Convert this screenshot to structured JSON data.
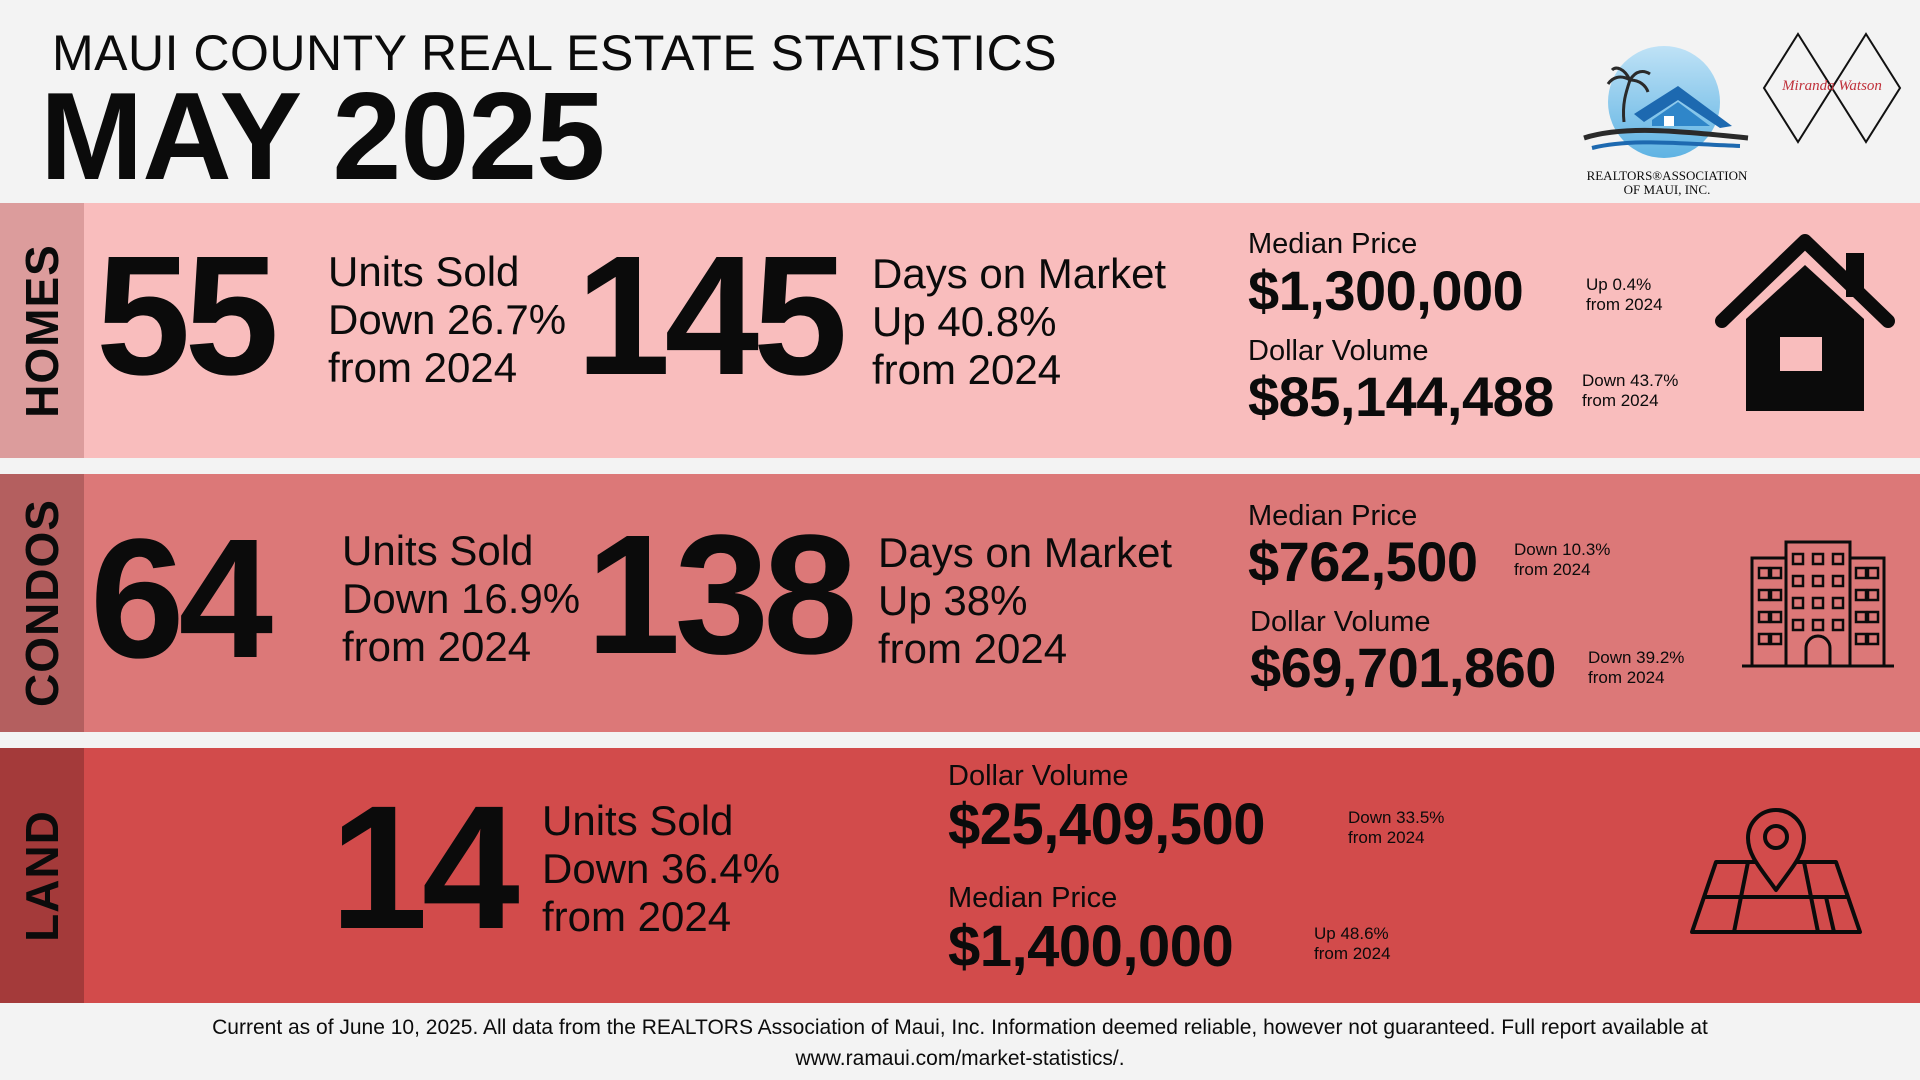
{
  "header": {
    "title": "MAUI COUNTY REAL ESTATE STATISTICS",
    "month": "MAY 2025"
  },
  "logos": {
    "association_line1": "REALTORS®ASSOCIATION",
    "association_line2": "OF MAUI, INC.",
    "agent_signature": "Miranda Watson"
  },
  "homes": {
    "label": "HOMES",
    "units": "55",
    "units_label": "Units Sold",
    "units_change": "Down 26.7%",
    "units_from": "from 2024",
    "days": "145",
    "days_label": "Days on Market",
    "days_change": "Up 40.8%",
    "days_from": "from 2024",
    "median_label": "Median Price",
    "median_value": "$1,300,000",
    "median_change": "Up 0.4%",
    "median_from": "from 2024",
    "volume_label": "Dollar Volume",
    "volume_value": "$85,144,488",
    "volume_change": "Down 43.7%",
    "volume_from": "from 2024",
    "icon": "house-icon"
  },
  "condos": {
    "label": "CONDOS",
    "units": "64",
    "units_label": "Units Sold",
    "units_change": "Down 16.9%",
    "units_from": "from 2024",
    "days": "138",
    "days_label": "Days on Market",
    "days_change": "Up 38%",
    "days_from": "from 2024",
    "median_label": "Median Price",
    "median_value": "$762,500",
    "median_change": "Down 10.3%",
    "median_from": "from 2024",
    "volume_label": "Dollar Volume",
    "volume_value": "$69,701,860",
    "volume_change": "Down 39.2%",
    "volume_from": "from 2024",
    "icon": "building-icon"
  },
  "land": {
    "label": "LAND",
    "units": "14",
    "units_label": "Units Sold",
    "units_change": "Down 36.4%",
    "units_from": "from 2024",
    "volume_label": "Dollar Volume",
    "volume_value": "$25,409,500",
    "volume_change": "Down 33.5%",
    "volume_from": "from 2024",
    "median_label": "Median Price",
    "median_value": "$1,400,000",
    "median_change": "Up 48.6%",
    "median_from": "from 2024",
    "icon": "map-pin-icon"
  },
  "footer": {
    "line1": "Current as of June 10, 2025. All data from the REALTORS Association of Maui, Inc. Information deemed reliable, however not guaranteed. Full report available at",
    "line2": "www.ramaui.com/market-statistics/."
  },
  "colors": {
    "page_bg": "#f3f3f3",
    "homes_band": "#f9bdbd",
    "homes_side": "#dc9c9c",
    "condos_band": "#dc7878",
    "condos_side": "#b45f5f",
    "land_band": "#d24b4b",
    "land_side": "#a43a3a"
  }
}
